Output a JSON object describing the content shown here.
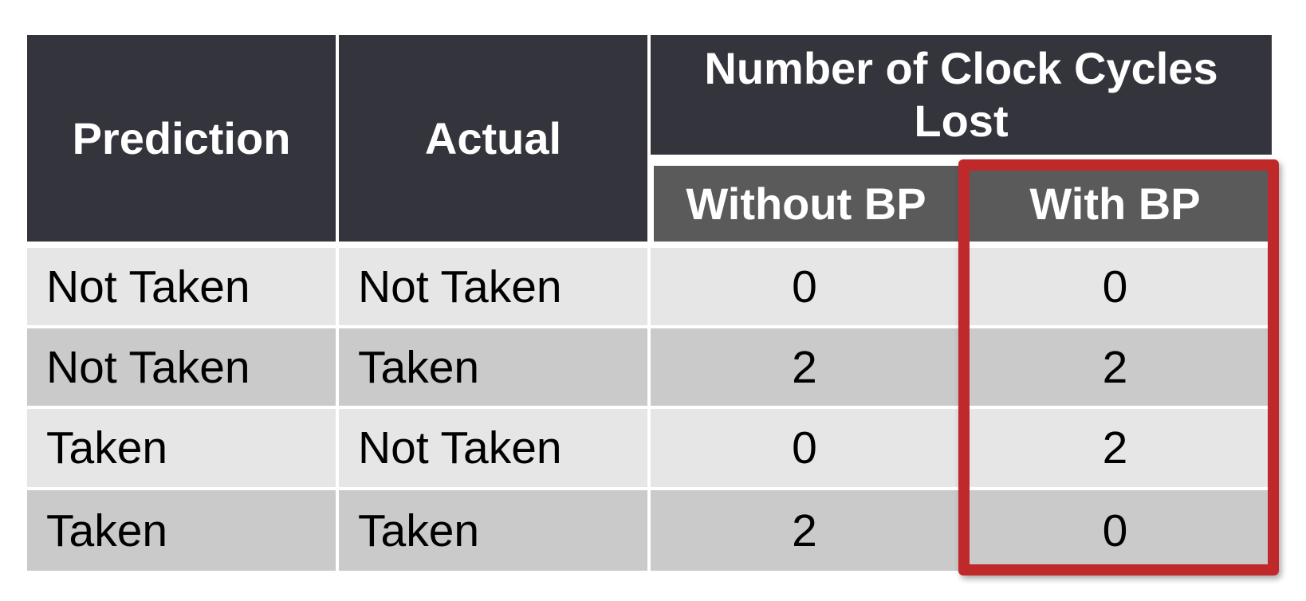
{
  "table": {
    "headers": {
      "prediction": "Prediction",
      "actual": "Actual",
      "cycles_lost_line1": "Number of Clock Cycles",
      "cycles_lost_line2": "Lost",
      "without_bp": "Without BP",
      "with_bp": "With BP"
    },
    "rows": [
      {
        "prediction": "Not Taken",
        "actual": "Not Taken",
        "without_bp": "0",
        "with_bp": "0"
      },
      {
        "prediction": "Not Taken",
        "actual": "Taken",
        "without_bp": "2",
        "with_bp": "2"
      },
      {
        "prediction": "Taken",
        "actual": "Not Taken",
        "without_bp": "0",
        "with_bp": "2"
      },
      {
        "prediction": "Taken",
        "actual": "Taken",
        "without_bp": "2",
        "with_bp": "0"
      }
    ]
  },
  "colors": {
    "header_bg": "#34343c",
    "subheader_bg": "#5a5a5a",
    "row_light": "#e6e6e6",
    "row_dark": "#cacaca",
    "highlight_border": "#c0292a"
  }
}
